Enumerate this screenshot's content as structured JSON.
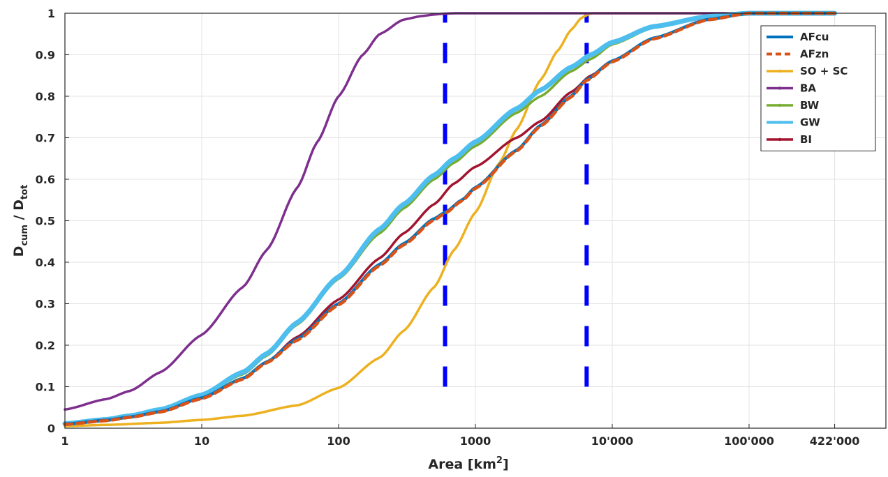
{
  "chart_data": {
    "type": "line",
    "x_scale": "log",
    "xlim": [
      1,
      1000000
    ],
    "ylim": [
      0,
      1
    ],
    "grid": true,
    "legend_position": "top-right",
    "xlabel": {
      "main": "Area [km",
      "sup": "2",
      "close": "]"
    },
    "ylabel": {
      "d1": "D",
      "sub1": "cum",
      "sep": " / ",
      "d2": "D",
      "sub2": "tot"
    },
    "x_ticks": [
      {
        "value": 1,
        "label": "1"
      },
      {
        "value": 10,
        "label": "10"
      },
      {
        "value": 100,
        "label": "100"
      },
      {
        "value": 1000,
        "label": "1000"
      },
      {
        "value": 10000,
        "label": "10'000"
      },
      {
        "value": 100000,
        "label": "100'000"
      },
      {
        "value": 422000,
        "label": "422'000"
      }
    ],
    "y_ticks": [
      {
        "value": 0,
        "label": "0"
      },
      {
        "value": 0.1,
        "label": "0.1"
      },
      {
        "value": 0.2,
        "label": "0.2"
      },
      {
        "value": 0.3,
        "label": "0.3"
      },
      {
        "value": 0.4,
        "label": "0.4"
      },
      {
        "value": 0.5,
        "label": "0.5"
      },
      {
        "value": 0.6,
        "label": "0.6"
      },
      {
        "value": 0.7,
        "label": "0.7"
      },
      {
        "value": 0.8,
        "label": "0.8"
      },
      {
        "value": 0.9,
        "label": "0.9"
      },
      {
        "value": 1,
        "label": "1"
      }
    ],
    "vertical_markers": [
      {
        "x": 600,
        "color": "#0000ff",
        "y_range": [
          0.1,
          1.0
        ]
      },
      {
        "x": 6500,
        "color": "#0000ff",
        "y_range": [
          0.1,
          1.0
        ]
      }
    ],
    "series": [
      {
        "name": "AFcu",
        "color": "#0072bd",
        "style": "solid",
        "width": 4.5,
        "marker": "none",
        "x": [
          1,
          2,
          3,
          5,
          10,
          20,
          30,
          50,
          100,
          200,
          300,
          500,
          600,
          800,
          1000,
          2000,
          3000,
          5000,
          6500,
          10000,
          20000,
          50000,
          100000,
          422000
        ],
        "y": [
          0.01,
          0.019,
          0.027,
          0.04,
          0.073,
          0.12,
          0.16,
          0.215,
          0.3,
          0.395,
          0.445,
          0.505,
          0.52,
          0.55,
          0.58,
          0.67,
          0.73,
          0.8,
          0.84,
          0.885,
          0.94,
          0.985,
          1.0,
          1.0
        ]
      },
      {
        "name": "AFzn",
        "color": "#d95319",
        "style": "dashed",
        "width": 4.5,
        "marker": "none",
        "x": [
          1,
          2,
          3,
          5,
          10,
          20,
          30,
          50,
          100,
          200,
          300,
          500,
          600,
          800,
          1000,
          2000,
          3000,
          5000,
          6500,
          10000,
          20000,
          50000,
          100000,
          422000
        ],
        "y": [
          0.009,
          0.018,
          0.026,
          0.039,
          0.071,
          0.118,
          0.158,
          0.212,
          0.297,
          0.392,
          0.442,
          0.502,
          0.518,
          0.548,
          0.578,
          0.668,
          0.728,
          0.798,
          0.838,
          0.883,
          0.938,
          0.984,
          1.0,
          1.0
        ]
      },
      {
        "name": "SO + SC",
        "color": "#edb120",
        "style": "solid",
        "width": 3.5,
        "marker": "dot",
        "x": [
          1,
          2,
          5,
          10,
          20,
          50,
          100,
          200,
          300,
          500,
          700,
          1000,
          1500,
          2000,
          3000,
          4000,
          5000,
          6000,
          7000,
          10000,
          422000
        ],
        "y": [
          0.005,
          0.008,
          0.013,
          0.02,
          0.03,
          0.055,
          0.097,
          0.17,
          0.235,
          0.34,
          0.43,
          0.52,
          0.64,
          0.72,
          0.84,
          0.91,
          0.96,
          0.99,
          1.0,
          1.0,
          1.0
        ]
      },
      {
        "name": "BA",
        "color": "#7e2f8e",
        "style": "solid",
        "width": 3.5,
        "marker": "dot",
        "x": [
          1,
          2,
          3,
          5,
          10,
          20,
          30,
          50,
          70,
          100,
          150,
          200,
          300,
          400,
          500,
          600,
          700,
          1000,
          10000,
          422000
        ],
        "y": [
          0.045,
          0.07,
          0.09,
          0.135,
          0.225,
          0.34,
          0.43,
          0.58,
          0.69,
          0.8,
          0.9,
          0.95,
          0.985,
          0.993,
          0.997,
          0.999,
          1.0,
          1.0,
          1.0,
          1.0
        ]
      },
      {
        "name": "BW",
        "color": "#77ac30",
        "style": "solid",
        "width": 3.5,
        "marker": "dot",
        "x": [
          1,
          2,
          3,
          5,
          10,
          20,
          30,
          50,
          100,
          200,
          300,
          500,
          700,
          1000,
          2000,
          3000,
          5000,
          7000,
          10000,
          20000,
          50000,
          100000,
          422000
        ],
        "y": [
          0.01,
          0.02,
          0.028,
          0.043,
          0.078,
          0.13,
          0.175,
          0.25,
          0.36,
          0.47,
          0.53,
          0.6,
          0.64,
          0.68,
          0.76,
          0.8,
          0.86,
          0.89,
          0.925,
          0.965,
          0.99,
          1.0,
          1.0
        ]
      },
      {
        "name": "GW",
        "color": "#4dbeee",
        "style": "solid",
        "width": 7,
        "marker": "dot",
        "x": [
          1,
          2,
          3,
          5,
          10,
          20,
          30,
          50,
          100,
          200,
          300,
          500,
          700,
          1000,
          2000,
          3000,
          5000,
          7000,
          10000,
          20000,
          50000,
          100000,
          422000
        ],
        "y": [
          0.011,
          0.021,
          0.03,
          0.045,
          0.08,
          0.135,
          0.18,
          0.255,
          0.365,
          0.48,
          0.54,
          0.61,
          0.65,
          0.69,
          0.77,
          0.815,
          0.87,
          0.9,
          0.93,
          0.968,
          0.992,
          1.0,
          1.0
        ]
      },
      {
        "name": "BI",
        "color": "#a2142f",
        "style": "solid",
        "width": 3.5,
        "marker": "dot",
        "x": [
          1,
          2,
          3,
          5,
          10,
          20,
          30,
          50,
          100,
          200,
          300,
          500,
          700,
          1000,
          2000,
          3000,
          5000,
          7000,
          10000,
          20000,
          50000,
          100000,
          422000
        ],
        "y": [
          0.01,
          0.02,
          0.027,
          0.04,
          0.072,
          0.12,
          0.16,
          0.22,
          0.31,
          0.41,
          0.47,
          0.54,
          0.59,
          0.63,
          0.7,
          0.74,
          0.81,
          0.85,
          0.885,
          0.94,
          0.985,
          1.0,
          1.0
        ]
      }
    ]
  }
}
